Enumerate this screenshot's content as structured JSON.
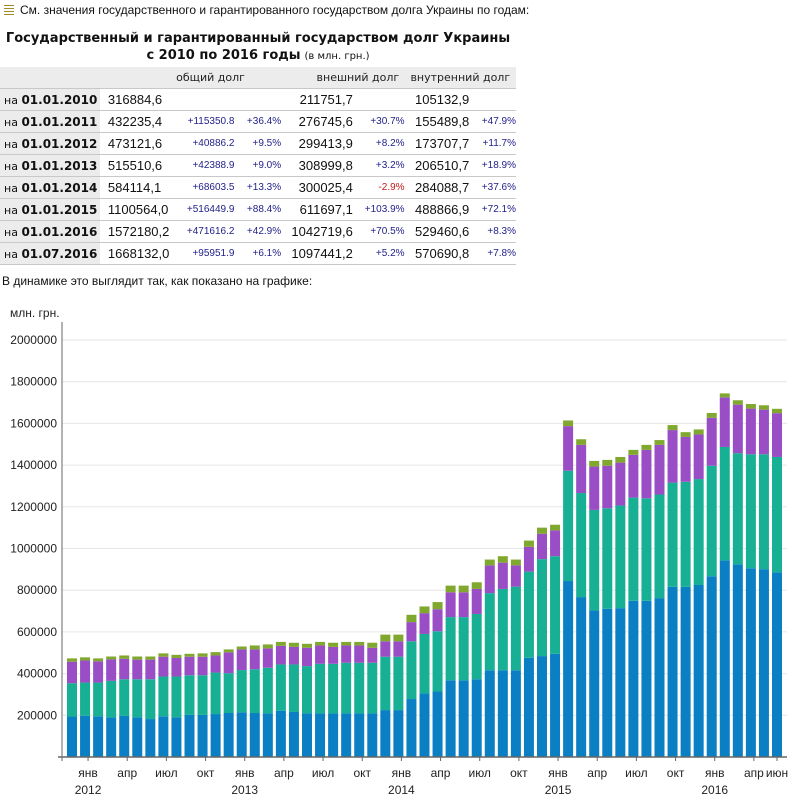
{
  "intro": {
    "icon": "list-icon",
    "text": "См. значения государственного и гарантированного государством долга Украины по годам:"
  },
  "table": {
    "title_line1": "Государственный и гарантированный государством долг Украины",
    "title_line2": "с 2010 по 2016 годы",
    "unit": "(в млн. грн.)",
    "headers": [
      "общий долг",
      "внешний долг",
      "внутренний долг"
    ],
    "row_prefix": "на",
    "rows": [
      {
        "date": "01.01.2010",
        "total": "316884,6",
        "total_delta": "",
        "total_pct": "",
        "ext": "211751,7",
        "ext_pct": "",
        "int": "105132,9",
        "int_pct": ""
      },
      {
        "date": "01.01.2011",
        "total": "432235,4",
        "total_delta": "+115350.8",
        "total_pct": "+36.4%",
        "ext": "276745,6",
        "ext_pct": "+30.7%",
        "int": "155489,8",
        "int_pct": "+47.9%"
      },
      {
        "date": "01.01.2012",
        "total": "473121,6",
        "total_delta": "+40886.2",
        "total_pct": "+9.5%",
        "ext": "299413,9",
        "ext_pct": "+8.2%",
        "int": "173707,7",
        "int_pct": "+11.7%"
      },
      {
        "date": "01.01.2013",
        "total": "515510,6",
        "total_delta": "+42388.9",
        "total_pct": "+9.0%",
        "ext": "308999,8",
        "ext_pct": "+3.2%",
        "int": "206510,7",
        "int_pct": "+18.9%"
      },
      {
        "date": "01.01.2014",
        "total": "584114,1",
        "total_delta": "+68603.5",
        "total_pct": "+13.3%",
        "ext": "300025,4",
        "ext_pct": "-2.9%",
        "int": "284088,7",
        "int_pct": "+37.6%"
      },
      {
        "date": "01.01.2015",
        "total": "1100564,0",
        "total_delta": "+516449.9",
        "total_pct": "+88.4%",
        "ext": "611697,1",
        "ext_pct": "+103.9%",
        "int": "488866,9",
        "int_pct": "+72.1%"
      },
      {
        "date": "01.01.2016",
        "total": "1572180,2",
        "total_delta": "+471616.2",
        "total_pct": "+42.9%",
        "ext": "1042719,6",
        "ext_pct": "+70.5%",
        "int": "529460,6",
        "int_pct": "+8.3%"
      },
      {
        "date": "01.07.2016",
        "total": "1668132,0",
        "total_delta": "+95951.9",
        "total_pct": "+6.1%",
        "ext": "1097441,2",
        "ext_pct": "+5.2%",
        "int": "570690,8",
        "int_pct": "+7.8%"
      }
    ],
    "colors": {
      "delta": "#22228a",
      "negative": "#c0191a",
      "label_bg": "#ececec"
    }
  },
  "caption": "В динамике это выглядит так, как показано на графике:",
  "chart_data": {
    "type": "bar",
    "stacked": true,
    "ylabel": "млн. грн.",
    "ylim": [
      0,
      2000000
    ],
    "yticks": [
      200000,
      400000,
      600000,
      800000,
      1000000,
      1200000,
      1400000,
      1600000,
      1800000,
      2000000
    ],
    "grid": true,
    "legend": "none",
    "months": [
      "2011-12",
      "2012-01",
      "2012-02",
      "2012-03",
      "2012-04",
      "2012-05",
      "2012-06",
      "2012-07",
      "2012-08",
      "2012-09",
      "2012-10",
      "2012-11",
      "2012-12",
      "2013-01",
      "2013-02",
      "2013-03",
      "2013-04",
      "2013-05",
      "2013-06",
      "2013-07",
      "2013-08",
      "2013-09",
      "2013-10",
      "2013-11",
      "2013-12",
      "2014-01",
      "2014-02",
      "2014-03",
      "2014-04",
      "2014-05",
      "2014-06",
      "2014-07",
      "2014-08",
      "2014-09",
      "2014-10",
      "2014-11",
      "2014-12",
      "2015-01",
      "2015-02",
      "2015-03",
      "2015-04",
      "2015-05",
      "2015-06",
      "2015-07",
      "2015-08",
      "2015-09",
      "2015-10",
      "2015-11",
      "2015-12",
      "2016-01",
      "2016-02",
      "2016-03",
      "2016-04",
      "2016-05",
      "2016-06"
    ],
    "xtick_labels": [
      {
        "month": "2012-01",
        "label": "янв",
        "year": "2012"
      },
      {
        "month": "2012-04",
        "label": "апр"
      },
      {
        "month": "2012-07",
        "label": "июл"
      },
      {
        "month": "2012-10",
        "label": "окт"
      },
      {
        "month": "2013-01",
        "label": "янв",
        "year": "2013"
      },
      {
        "month": "2013-04",
        "label": "апр"
      },
      {
        "month": "2013-07",
        "label": "июл"
      },
      {
        "month": "2013-10",
        "label": "окт"
      },
      {
        "month": "2014-01",
        "label": "янв",
        "year": "2014"
      },
      {
        "month": "2014-04",
        "label": "апр"
      },
      {
        "month": "2014-07",
        "label": "июл"
      },
      {
        "month": "2014-10",
        "label": "окт"
      },
      {
        "month": "2015-01",
        "label": "янв",
        "year": "2015"
      },
      {
        "month": "2015-04",
        "label": "апр"
      },
      {
        "month": "2015-07",
        "label": "июл"
      },
      {
        "month": "2015-10",
        "label": "окт"
      },
      {
        "month": "2016-01",
        "label": "янв",
        "year": "2016"
      },
      {
        "month": "2016-04",
        "label": "апр"
      },
      {
        "month": "2016-06",
        "label": "июн"
      }
    ],
    "series": [
      {
        "color": "#0b7fc3",
        "values": [
          194000,
          198000,
          195000,
          190000,
          197000,
          190000,
          182000,
          195000,
          190000,
          202000,
          202000,
          206000,
          211000,
          214000,
          211000,
          209000,
          222000,
          216000,
          209000,
          209000,
          209000,
          209000,
          209000,
          209000,
          225000,
          225000,
          278000,
          305000,
          314000,
          368000,
          368000,
          373000,
          416000,
          416000,
          416000,
          476000,
          484000,
          495000,
          844000,
          767000,
          703000,
          711000,
          714000,
          749000,
          749000,
          762000,
          816000,
          816000,
          825000,
          867000,
          943000,
          924000,
          905000,
          901000,
          886000
        ]
      },
      {
        "color": "#17b095",
        "values": [
          160000,
          159000,
          162000,
          175000,
          176000,
          183000,
          191000,
          191000,
          196000,
          190000,
          190000,
          199000,
          191000,
          203000,
          210000,
          219000,
          222000,
          228000,
          227000,
          238000,
          238000,
          243000,
          243000,
          243000,
          256000,
          256000,
          277000,
          285000,
          289000,
          303000,
          303000,
          313000,
          370000,
          390000,
          401000,
          413000,
          465000,
          468000,
          529000,
          499000,
          482000,
          482000,
          492000,
          495000,
          492000,
          497000,
          500000,
          504000,
          508000,
          530000,
          544000,
          533000,
          547000,
          551000,
          553000
        ]
      },
      {
        "color": "#9a4ec6",
        "values": [
          103000,
          106000,
          102000,
          103000,
          98000,
          94000,
          94000,
          95000,
          89000,
          89000,
          89000,
          82000,
          100000,
          99000,
          95000,
          93000,
          89000,
          84000,
          88000,
          88000,
          81000,
          83000,
          83000,
          72000,
          74000,
          74000,
          92000,
          100000,
          106000,
          119000,
          119000,
          120000,
          133000,
          126000,
          102000,
          119000,
          122000,
          124000,
          214000,
          231000,
          208000,
          204000,
          206000,
          205000,
          232000,
          238000,
          252000,
          215000,
          214000,
          230000,
          238000,
          233000,
          219000,
          214000,
          210000
        ]
      },
      {
        "color": "#80a82e",
        "values": [
          16000,
          15000,
          14000,
          14000,
          16000,
          15000,
          15000,
          16000,
          15000,
          14000,
          16000,
          16000,
          14000,
          14000,
          19000,
          19000,
          19000,
          20000,
          19000,
          17000,
          20000,
          17000,
          17000,
          24000,
          32000,
          32000,
          35000,
          32000,
          34000,
          32000,
          32000,
          32000,
          28000,
          31000,
          28000,
          30000,
          29000,
          27000,
          27000,
          27000,
          27000,
          28000,
          27000,
          24000,
          24000,
          23000,
          24000,
          23000,
          24000,
          23000,
          19000,
          21000,
          22000,
          21000,
          21000
        ]
      }
    ]
  }
}
